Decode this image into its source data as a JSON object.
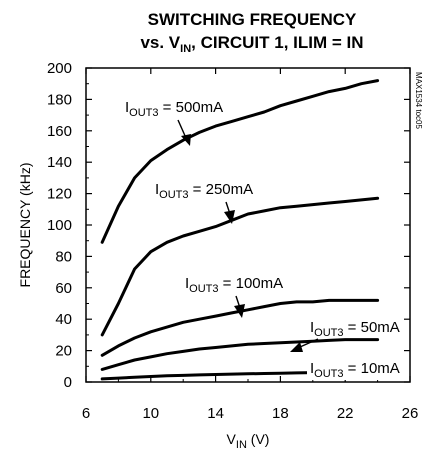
{
  "chart_data": {
    "type": "line",
    "title": {
      "line1": "SWITCHING FREQUENCY",
      "line2_pre": "vs. V",
      "line2_sub": "IN",
      "line2_post": ", CIRCUIT 1, ILIM = IN"
    },
    "xlabel": {
      "main": "V",
      "sub": "IN",
      "post": " (V)"
    },
    "ylabel": "FREQUENCY (kHz)",
    "xlim": [
      6,
      26
    ],
    "ylim": [
      0,
      200
    ],
    "xticks": [
      "6",
      "10",
      "14",
      "18",
      "22",
      "26"
    ],
    "yticks": [
      "0",
      "20",
      "40",
      "60",
      "80",
      "100",
      "120",
      "140",
      "160",
      "180",
      "200"
    ],
    "grid": false,
    "side_label": "MAX1534 toc05",
    "series": [
      {
        "label": {
          "main": "I",
          "sub": "OUT3",
          "post": " = 500mA"
        },
        "x": [
          7,
          8,
          9,
          10,
          11,
          12,
          13,
          14,
          15,
          16,
          17,
          18,
          19,
          20,
          21,
          22,
          23,
          24
        ],
        "y": [
          89,
          112,
          130,
          141,
          148,
          154,
          159,
          163,
          166,
          169,
          172,
          176,
          179,
          182,
          185,
          187,
          190,
          192
        ]
      },
      {
        "label": {
          "main": "I",
          "sub": "OUT3",
          "post": " = 250mA"
        },
        "x": [
          7,
          8,
          9,
          10,
          11,
          12,
          13,
          14,
          15,
          16,
          17,
          18,
          19,
          20,
          21,
          22,
          23,
          24
        ],
        "y": [
          30,
          50,
          72,
          83,
          89,
          93,
          96,
          99,
          103,
          107,
          109,
          111,
          112,
          113,
          114,
          115,
          116,
          117
        ]
      },
      {
        "label": {
          "main": "I",
          "sub": "OUT3",
          "post": " = 100mA"
        },
        "x": [
          7,
          8,
          9,
          10,
          11,
          12,
          13,
          14,
          15,
          16,
          17,
          18,
          19,
          20,
          21,
          22,
          23,
          24
        ],
        "y": [
          17,
          23,
          28,
          32,
          35,
          38,
          40,
          42,
          44,
          46,
          48,
          50,
          51,
          51,
          52,
          52,
          52,
          52
        ]
      },
      {
        "label": {
          "main": "I",
          "sub": "OUT3",
          "post": " = 50mA"
        },
        "x": [
          7,
          8,
          9,
          10,
          11,
          12,
          13,
          14,
          15,
          16,
          17,
          18,
          19,
          20,
          21,
          22,
          23,
          24
        ],
        "y": [
          8,
          11,
          14,
          16,
          18,
          19.5,
          21,
          22,
          23,
          24,
          24.5,
          25,
          25.5,
          26,
          26.5,
          27,
          27,
          27
        ]
      },
      {
        "label": {
          "main": "I",
          "sub": "OUT3",
          "post": " = 10mA"
        },
        "x": [
          7,
          8,
          9,
          10,
          11,
          12,
          13,
          14,
          15,
          16,
          17,
          18,
          19,
          20,
          21,
          22,
          23,
          24
        ],
        "y": [
          2,
          2.5,
          3,
          3.5,
          4,
          4.2,
          4.5,
          4.8,
          5,
          5.2,
          5.4,
          5.6,
          5.8,
          6,
          6.1,
          6.2,
          6.3,
          6.4
        ]
      }
    ]
  }
}
